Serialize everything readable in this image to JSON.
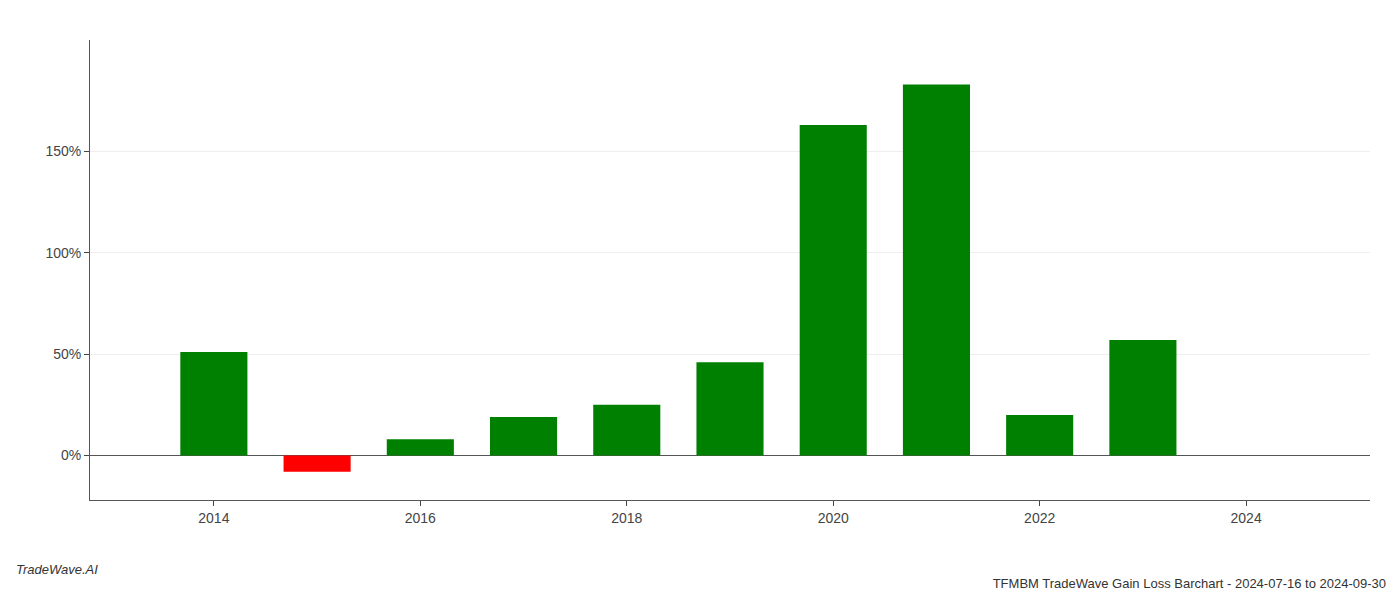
{
  "chart_data": {
    "type": "bar",
    "title": "TFMBM TradeWave Gain Loss Barchart - 2024-07-16 to 2024-09-30",
    "annotations": [
      "TradeWave.AI"
    ],
    "x": [
      2014,
      2015,
      2016,
      2017,
      2018,
      2019,
      2020,
      2021,
      2022,
      2023
    ],
    "values": [
      51.0,
      -8.0,
      8.0,
      19.0,
      25.0,
      46.0,
      163.0,
      183.0,
      20.0,
      57.0
    ],
    "colors": [
      "#008000",
      "#ff0000",
      "#008000",
      "#008000",
      "#008000",
      "#008000",
      "#008000",
      "#008000",
      "#008000",
      "#008000"
    ],
    "xlim": [
      2012.8,
      2025.2
    ],
    "xticks": [
      2014,
      2016,
      2018,
      2020,
      2022,
      2024
    ],
    "ylim": [
      -22,
      205
    ],
    "yticks": [
      {
        "value": 0,
        "label": "0%"
      },
      {
        "value": 50,
        "label": "50%"
      },
      {
        "value": 100,
        "label": "100%"
      },
      {
        "value": 150,
        "label": "150%"
      }
    ],
    "grid": true
  }
}
